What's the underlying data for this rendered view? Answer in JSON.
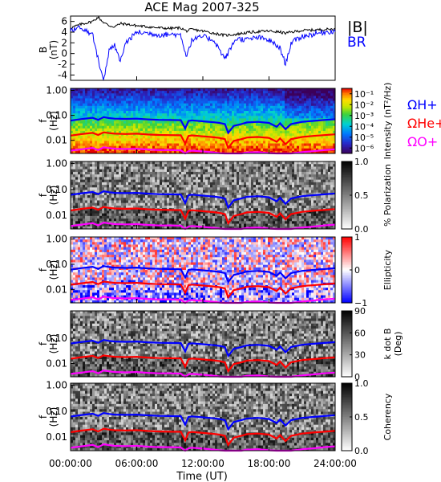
{
  "title": "ACE Mag 2007-325",
  "x_axis": {
    "ticks": [
      "00:00:00",
      "06:00:00",
      "12:00:00",
      "18:00:00",
      "24:00:00"
    ],
    "tick_hours": [
      0,
      6,
      12,
      18,
      24
    ],
    "label": "Time (UT)"
  },
  "chart_data": [
    {
      "type": "line",
      "panel": "magnetic-field",
      "ylabel": "B",
      "yunits": "(nT)",
      "ylim": [
        -5,
        7
      ],
      "yticks": [
        "6",
        "4",
        "2",
        "0",
        "-2",
        "-4"
      ],
      "ytick_values": [
        6,
        4,
        2,
        0,
        -2,
        -4
      ],
      "x": [
        0,
        1,
        2,
        2.5,
        3,
        3.5,
        4,
        4.5,
        5,
        6,
        7,
        8,
        9,
        10,
        10.5,
        11,
        12,
        13,
        14,
        15,
        16,
        17,
        18,
        19,
        19.5,
        20,
        21,
        22,
        23,
        24
      ],
      "series": [
        {
          "name": "|B|",
          "color": "#000000",
          "values": [
            4.8,
            5.5,
            6.0,
            6.8,
            5.8,
            5.2,
            5.0,
            5.6,
            5.5,
            5.2,
            5.0,
            4.8,
            4.7,
            4.8,
            4.2,
            4.5,
            4.2,
            3.8,
            3.4,
            3.6,
            3.9,
            4.1,
            4.2,
            4.0,
            3.8,
            4.0,
            4.3,
            4.4,
            4.5,
            4.6
          ]
        },
        {
          "name": "BR",
          "color": "#0000ff",
          "values": [
            4.5,
            4.8,
            3.5,
            -1.0,
            -5.0,
            0.5,
            1.5,
            -1.5,
            2.0,
            4.0,
            3.8,
            3.5,
            3.6,
            3.5,
            -0.5,
            2.5,
            3.2,
            2.5,
            -1.0,
            2.8,
            2.6,
            3.0,
            2.5,
            1.0,
            -2.0,
            2.0,
            3.2,
            3.6,
            4.0,
            4.2
          ]
        }
      ]
    },
    {
      "type": "heatmap",
      "panel": "intensity",
      "ylabel": "f",
      "yunits": "(Hz)",
      "yscale": "log",
      "ylim": [
        0.003,
        1.2
      ],
      "yticks": [
        "1.00",
        "0.10",
        "0.01"
      ],
      "ytick_values": [
        1,
        0.1,
        0.01
      ],
      "colorbar": {
        "label": "Intensity (nT²/Hz)",
        "ticks": [
          "10⁻¹",
          "10⁻²",
          "10⁻³",
          "10⁻⁴",
          "10⁻⁵",
          "10⁻⁶"
        ],
        "tick_exponents": [
          -1,
          -2,
          -3,
          -4,
          -5,
          -6
        ],
        "range": [
          -6.5,
          -0.5
        ],
        "palette": "rainbow"
      },
      "legend": [
        {
          "label": "ΩH+",
          "color": "#0000ff"
        },
        {
          "label": "ΩHe+",
          "color": "#ff0000"
        },
        {
          "label": "ΩO+",
          "color": "#ff00ff"
        }
      ]
    },
    {
      "type": "heatmap",
      "panel": "polarization",
      "ylabel": "f",
      "yunits": "(Hz)",
      "yscale": "log",
      "ylim": [
        0.003,
        1.2
      ],
      "yticks": [
        "1.00",
        "0.10",
        "0.01"
      ],
      "ytick_values": [
        1,
        0.1,
        0.01
      ],
      "colorbar": {
        "label": "% Polarization",
        "ticks": [
          "1.0",
          "0.5",
          "0.0"
        ],
        "tick_values": [
          1,
          0.5,
          0
        ],
        "range": [
          0,
          1
        ],
        "palette": "gray"
      }
    },
    {
      "type": "heatmap",
      "panel": "ellipticity",
      "ylabel": "f",
      "yunits": "(Hz)",
      "yscale": "log",
      "ylim": [
        0.003,
        1.2
      ],
      "yticks": [
        "1.00",
        "0.10",
        "0.01"
      ],
      "ytick_values": [
        1,
        0.1,
        0.01
      ],
      "colorbar": {
        "label": "Ellipticity",
        "ticks": [
          "1",
          "0",
          "−1"
        ],
        "tick_values": [
          1,
          0,
          -1
        ],
        "range": [
          -1,
          1
        ],
        "palette": "bluewhitered"
      }
    },
    {
      "type": "heatmap",
      "panel": "wave-normal-angle",
      "ylabel": "f",
      "yunits": "(Hz)",
      "yscale": "log",
      "ylim": [
        0.003,
        1.2
      ],
      "yticks": [
        "0.10",
        "0.01"
      ],
      "ytick_values": [
        0.1,
        0.01
      ],
      "colorbar": {
        "label": "k dot B",
        "sublabel": "(Deg)",
        "ticks": [
          "90",
          "60",
          "30",
          "0"
        ],
        "tick_values": [
          90,
          60,
          30,
          0
        ],
        "range": [
          0,
          90
        ],
        "palette": "gray"
      }
    },
    {
      "type": "heatmap",
      "panel": "coherency",
      "ylabel": "f",
      "yunits": "(Hz)",
      "yscale": "log",
      "ylim": [
        0.003,
        1.2
      ],
      "yticks": [
        "1.00",
        "0.10",
        "0.01"
      ],
      "ytick_values": [
        1,
        0.1,
        0.01
      ],
      "colorbar": {
        "label": "Coherency",
        "ticks": [
          "1.0",
          "0.5",
          "0.0"
        ],
        "tick_values": [
          1,
          0.5,
          0
        ],
        "range": [
          0,
          1
        ],
        "palette": "gray"
      }
    }
  ],
  "gyrofrequency_lines": {
    "hours": [
      0,
      1,
      2,
      2.5,
      3,
      3.5,
      4,
      5,
      6,
      7,
      8,
      9,
      10,
      10.4,
      10.7,
      11,
      12,
      13,
      13.5,
      14,
      14.3,
      14.8,
      15.5,
      16,
      17,
      18,
      18.7,
      19,
      19.5,
      20,
      21,
      22,
      23,
      24
    ],
    "series": [
      {
        "name": "ΩH+",
        "color": "#0000ff",
        "values": [
          0.062,
          0.071,
          0.08,
          0.066,
          0.085,
          0.078,
          0.074,
          0.072,
          0.074,
          0.069,
          0.066,
          0.065,
          0.064,
          0.03,
          0.06,
          0.063,
          0.058,
          0.053,
          0.05,
          0.045,
          0.02,
          0.038,
          0.045,
          0.052,
          0.055,
          0.05,
          0.035,
          0.048,
          0.028,
          0.045,
          0.055,
          0.06,
          0.065,
          0.07
        ]
      },
      {
        "name": "ΩHe+",
        "color": "#ff0000",
        "values": [
          0.0155,
          0.0178,
          0.02,
          0.0165,
          0.021,
          0.0195,
          0.0185,
          0.018,
          0.0185,
          0.0172,
          0.0165,
          0.0162,
          0.016,
          0.0075,
          0.015,
          0.0158,
          0.0145,
          0.0133,
          0.0125,
          0.0112,
          0.005,
          0.0095,
          0.0112,
          0.013,
          0.0137,
          0.0125,
          0.0088,
          0.012,
          0.007,
          0.0112,
          0.0137,
          0.015,
          0.0162,
          0.0175
        ]
      },
      {
        "name": "ΩO+",
        "color": "#ff00ff",
        "values": [
          0.0039,
          0.0044,
          0.005,
          0.0041,
          0.0053,
          0.0049,
          0.0046,
          0.0045,
          0.0046,
          0.0043,
          0.0041,
          0.0041,
          0.004,
          0.0019,
          0.0037,
          0.0039,
          0.0036,
          0.0033,
          0.0031,
          0.0028,
          0.0013,
          0.0024,
          0.0028,
          0.0033,
          0.0034,
          0.0031,
          0.0022,
          0.003,
          0.0018,
          0.0028,
          0.0034,
          0.0037,
          0.0041,
          0.0044
        ]
      }
    ]
  }
}
